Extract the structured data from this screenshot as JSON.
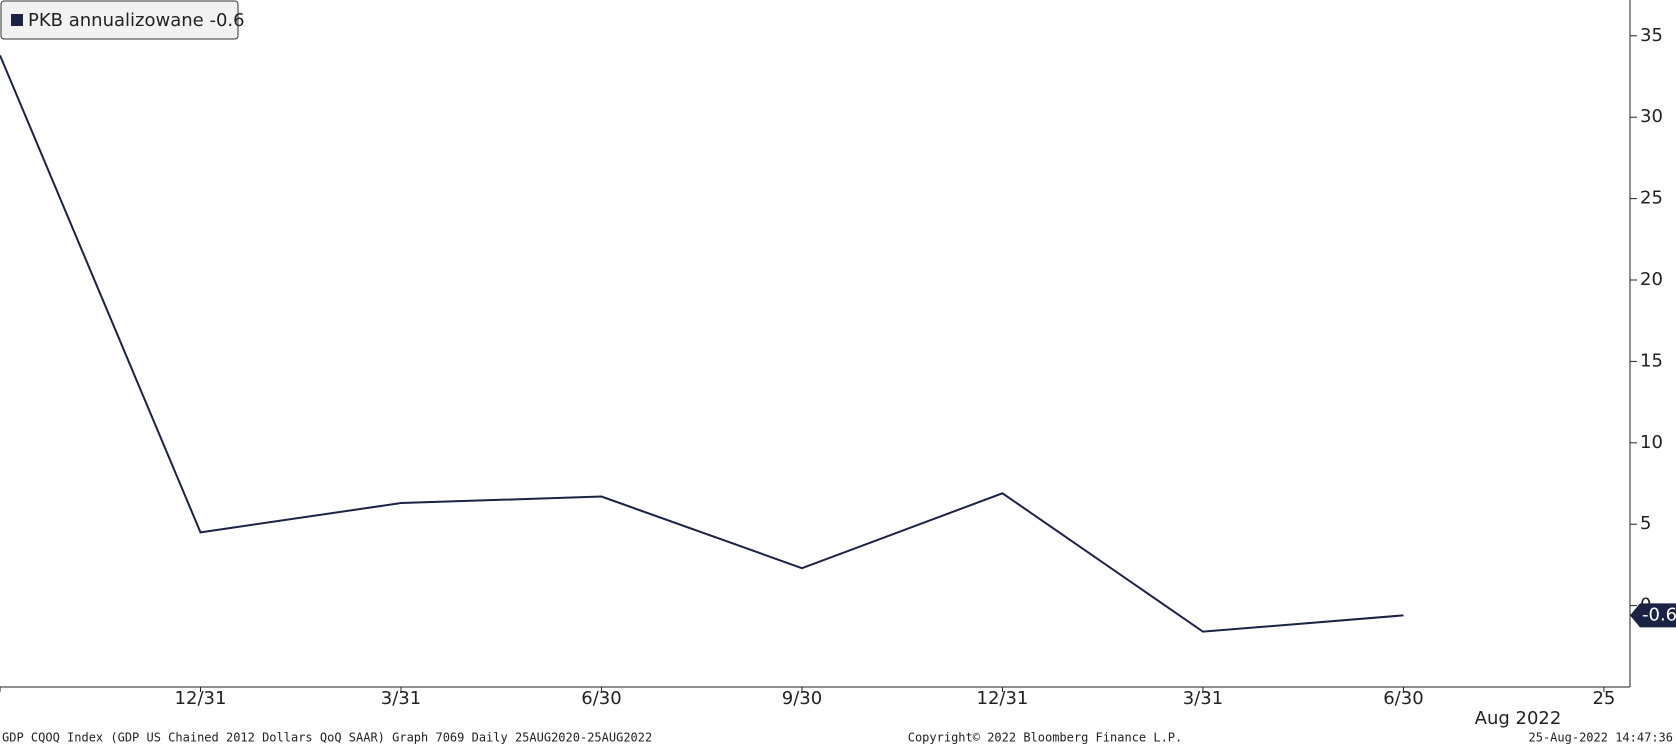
{
  "chart_data": {
    "type": "line",
    "categories": [
      null,
      "12/31",
      "3/31",
      "6/30",
      "9/30",
      "12/31",
      "3/31",
      "6/30"
    ],
    "x": [
      0,
      1,
      2,
      3,
      4,
      5,
      6,
      7
    ],
    "series": [
      {
        "name": "PKB annualizowane",
        "color": "#1b2344",
        "values": [
          33.8,
          4.5,
          6.3,
          6.7,
          2.3,
          6.9,
          -1.6,
          -0.6
        ]
      }
    ],
    "xlim": [
      0,
      8.13
    ],
    "xticks": [
      {
        "value": 8,
        "label": "25"
      }
    ],
    "x_period_label": "Aug 2022",
    "ylim": [
      -5,
      37.2
    ],
    "yticks": [
      0,
      5,
      10,
      15,
      20,
      25,
      30,
      35
    ],
    "legend": "top-left",
    "footer": {
      "left": "GDP CQOQ Index (GDP US Chained 2012 Dollars QoQ SAAR) Graph 7069  Daily 25AUG2020-25AUG2022",
      "center": "Copyright© 2022 Bloomberg Finance L.P.",
      "right": "25-Aug-2022 14:47:36"
    }
  }
}
